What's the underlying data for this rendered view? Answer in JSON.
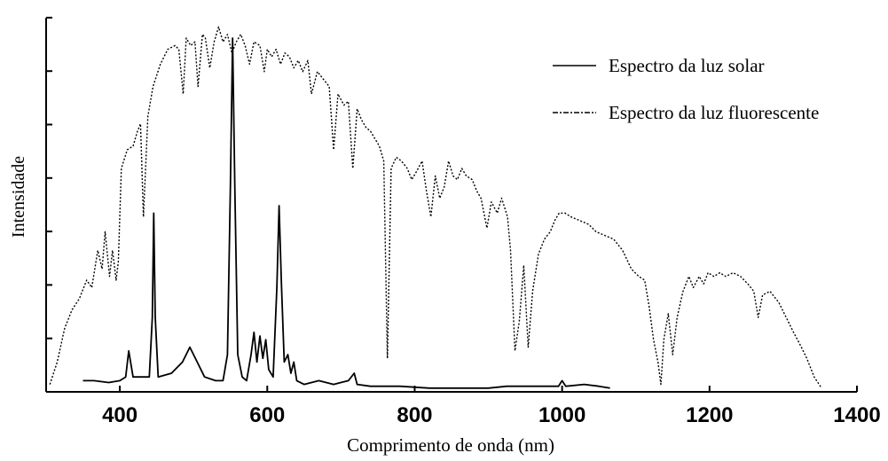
{
  "chart_data": {
    "type": "line",
    "title": "",
    "xlabel": "Comprimento de onda (nm)",
    "ylabel": "Intensidade",
    "xlim": [
      300,
      1400
    ],
    "ylim": [
      0,
      100
    ],
    "x_ticks": [
      400,
      600,
      800,
      1000,
      1200,
      1400
    ],
    "y_tick_count": 8,
    "y_tick_labels": false,
    "grid": false,
    "legend_placement": "top-right",
    "series": [
      {
        "name": "Espectro da luz solar",
        "style": "solid",
        "color": "#000000",
        "points": [
          [
            350,
            3
          ],
          [
            365,
            3
          ],
          [
            385,
            2.5
          ],
          [
            400,
            3
          ],
          [
            408,
            4
          ],
          [
            412,
            11
          ],
          [
            418,
            4
          ],
          [
            430,
            4
          ],
          [
            440,
            4
          ],
          [
            444,
            20
          ],
          [
            446,
            48
          ],
          [
            448,
            20
          ],
          [
            452,
            4
          ],
          [
            470,
            5
          ],
          [
            485,
            8
          ],
          [
            495,
            12
          ],
          [
            505,
            8
          ],
          [
            515,
            4
          ],
          [
            530,
            3
          ],
          [
            540,
            3
          ],
          [
            546,
            10
          ],
          [
            550,
            55
          ],
          [
            553,
            95
          ],
          [
            556,
            55
          ],
          [
            560,
            10
          ],
          [
            566,
            4
          ],
          [
            572,
            3
          ],
          [
            578,
            10
          ],
          [
            582,
            16
          ],
          [
            586,
            8
          ],
          [
            590,
            15
          ],
          [
            594,
            9
          ],
          [
            598,
            14
          ],
          [
            602,
            6
          ],
          [
            608,
            4
          ],
          [
            613,
            28
          ],
          [
            616,
            50
          ],
          [
            619,
            30
          ],
          [
            623,
            8
          ],
          [
            628,
            10
          ],
          [
            632,
            5
          ],
          [
            636,
            8
          ],
          [
            640,
            3
          ],
          [
            650,
            2
          ],
          [
            670,
            3
          ],
          [
            690,
            2
          ],
          [
            710,
            3
          ],
          [
            718,
            5
          ],
          [
            722,
            2
          ],
          [
            740,
            1.5
          ],
          [
            780,
            1.5
          ],
          [
            820,
            1
          ],
          [
            860,
            1
          ],
          [
            900,
            1
          ],
          [
            925,
            1.5
          ],
          [
            950,
            1.5
          ],
          [
            975,
            1.5
          ],
          [
            995,
            1.5
          ],
          [
            1000,
            3
          ],
          [
            1005,
            1.5
          ],
          [
            1030,
            2
          ],
          [
            1050,
            1.5
          ],
          [
            1065,
            1
          ]
        ]
      },
      {
        "name": "Espectro da luz fluorescente",
        "style": "dotted",
        "color": "#000000",
        "points": [
          [
            305,
            2
          ],
          [
            315,
            8
          ],
          [
            325,
            17
          ],
          [
            335,
            22
          ],
          [
            345,
            25
          ],
          [
            355,
            30
          ],
          [
            362,
            28
          ],
          [
            370,
            38
          ],
          [
            376,
            33
          ],
          [
            380,
            43
          ],
          [
            386,
            31
          ],
          [
            390,
            38
          ],
          [
            395,
            30
          ],
          [
            398,
            35
          ],
          [
            402,
            60
          ],
          [
            410,
            65
          ],
          [
            418,
            66
          ],
          [
            424,
            70
          ],
          [
            428,
            72
          ],
          [
            432,
            47
          ],
          [
            438,
            74
          ],
          [
            445,
            82
          ],
          [
            455,
            88
          ],
          [
            465,
            92
          ],
          [
            475,
            93
          ],
          [
            480,
            92
          ],
          [
            486,
            80
          ],
          [
            490,
            95
          ],
          [
            496,
            93
          ],
          [
            502,
            94
          ],
          [
            506,
            82
          ],
          [
            512,
            96
          ],
          [
            516,
            95
          ],
          [
            522,
            87
          ],
          [
            528,
            94
          ],
          [
            534,
            98
          ],
          [
            540,
            94
          ],
          [
            546,
            96
          ],
          [
            552,
            91
          ],
          [
            558,
            94
          ],
          [
            564,
            96
          ],
          [
            570,
            93
          ],
          [
            576,
            88
          ],
          [
            582,
            94
          ],
          [
            590,
            93
          ],
          [
            596,
            86
          ],
          [
            600,
            92
          ],
          [
            606,
            90
          ],
          [
            612,
            92
          ],
          [
            618,
            88
          ],
          [
            624,
            91
          ],
          [
            630,
            90
          ],
          [
            636,
            87
          ],
          [
            642,
            89
          ],
          [
            648,
            86
          ],
          [
            655,
            89
          ],
          [
            660,
            80
          ],
          [
            668,
            86
          ],
          [
            676,
            84
          ],
          [
            684,
            82
          ],
          [
            690,
            65
          ],
          [
            696,
            80
          ],
          [
            704,
            77
          ],
          [
            710,
            78
          ],
          [
            716,
            60
          ],
          [
            722,
            76
          ],
          [
            728,
            73
          ],
          [
            734,
            71
          ],
          [
            740,
            70
          ],
          [
            746,
            68
          ],
          [
            752,
            66
          ],
          [
            758,
            62
          ],
          [
            763,
            9
          ],
          [
            768,
            60
          ],
          [
            775,
            63
          ],
          [
            782,
            62
          ],
          [
            790,
            60
          ],
          [
            796,
            57
          ],
          [
            802,
            59
          ],
          [
            810,
            62
          ],
          [
            816,
            54
          ],
          [
            822,
            47
          ],
          [
            828,
            58
          ],
          [
            834,
            52
          ],
          [
            840,
            55
          ],
          [
            846,
            62
          ],
          [
            852,
            58
          ],
          [
            858,
            57
          ],
          [
            864,
            60
          ],
          [
            870,
            58
          ],
          [
            878,
            57
          ],
          [
            884,
            54
          ],
          [
            890,
            52
          ],
          [
            898,
            44
          ],
          [
            904,
            51
          ],
          [
            912,
            48
          ],
          [
            918,
            52
          ],
          [
            926,
            47
          ],
          [
            930,
            38
          ],
          [
            936,
            11
          ],
          [
            942,
            19
          ],
          [
            948,
            34
          ],
          [
            954,
            12
          ],
          [
            960,
            27
          ],
          [
            968,
            37
          ],
          [
            976,
            41
          ],
          [
            984,
            43
          ],
          [
            990,
            46
          ],
          [
            996,
            48
          ],
          [
            1004,
            48
          ],
          [
            1012,
            47
          ],
          [
            1024,
            46
          ],
          [
            1036,
            45
          ],
          [
            1046,
            43
          ],
          [
            1058,
            42
          ],
          [
            1070,
            41
          ],
          [
            1082,
            38
          ],
          [
            1094,
            33
          ],
          [
            1104,
            31
          ],
          [
            1112,
            30
          ],
          [
            1118,
            23
          ],
          [
            1124,
            14
          ],
          [
            1130,
            8
          ],
          [
            1134,
            2
          ],
          [
            1138,
            14
          ],
          [
            1144,
            21
          ],
          [
            1150,
            10
          ],
          [
            1156,
            20
          ],
          [
            1164,
            27
          ],
          [
            1172,
            31
          ],
          [
            1178,
            28
          ],
          [
            1186,
            31
          ],
          [
            1192,
            29
          ],
          [
            1198,
            32
          ],
          [
            1206,
            31
          ],
          [
            1214,
            32
          ],
          [
            1222,
            31
          ],
          [
            1232,
            32
          ],
          [
            1242,
            31
          ],
          [
            1252,
            29
          ],
          [
            1260,
            27
          ],
          [
            1266,
            20
          ],
          [
            1272,
            26
          ],
          [
            1282,
            27
          ],
          [
            1294,
            24
          ],
          [
            1304,
            20
          ],
          [
            1314,
            16
          ],
          [
            1322,
            13
          ],
          [
            1332,
            9
          ],
          [
            1342,
            4
          ],
          [
            1352,
            1
          ]
        ]
      }
    ]
  }
}
